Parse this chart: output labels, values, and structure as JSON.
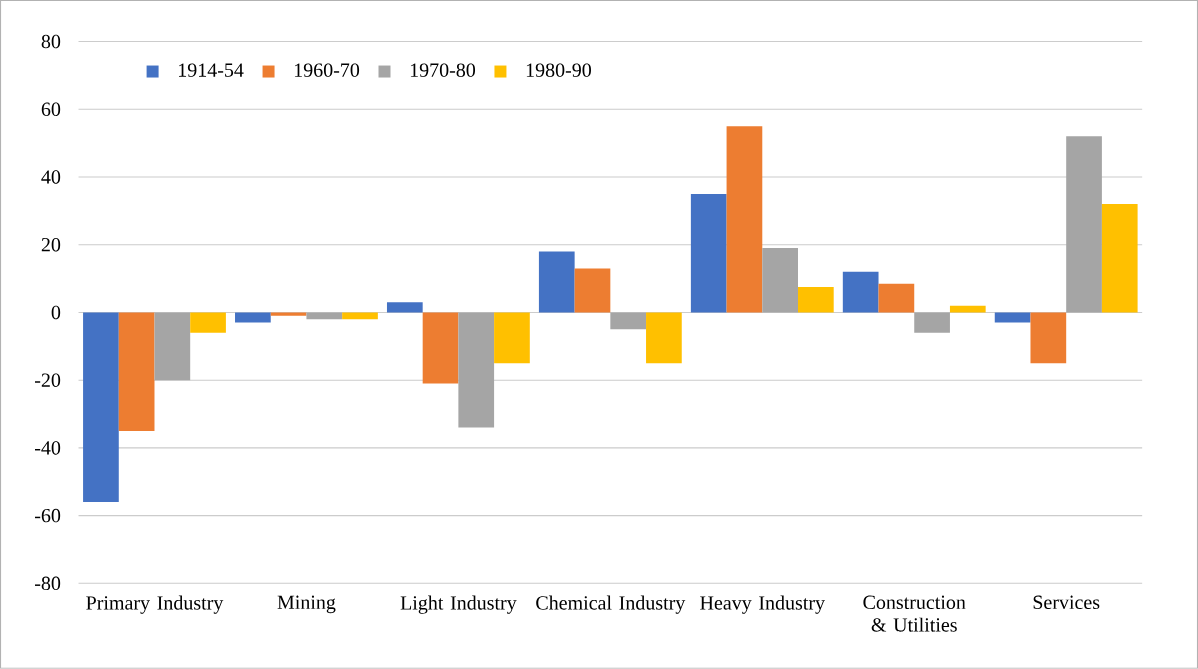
{
  "chart_data": {
    "type": "bar",
    "categories": [
      "Primary Industry",
      "Mining",
      "Light Industry",
      "Chemical Industry",
      "Heavy Industry",
      "Construction & Utilities",
      "Services"
    ],
    "series": [
      {
        "name": "1914-54",
        "color": "#4472c4",
        "values": [
          -56,
          -3,
          3,
          18,
          35,
          12,
          -3
        ]
      },
      {
        "name": "1960-70",
        "color": "#ed7d31",
        "values": [
          -35,
          -1,
          -21,
          13,
          55,
          8.5,
          -15
        ]
      },
      {
        "name": "1970-80",
        "color": "#a5a5a5",
        "values": [
          -20,
          -2,
          -34,
          -5,
          19,
          -6,
          52
        ]
      },
      {
        "name": "1980-90",
        "color": "#ffc000",
        "values": [
          -6,
          -2,
          -15,
          -15,
          7.5,
          2,
          32
        ]
      }
    ],
    "ylim": [
      -80,
      80
    ],
    "yticks": [
      -80,
      -60,
      -40,
      -20,
      0,
      20,
      40,
      60,
      80
    ],
    "grid": "y",
    "legend": "top left"
  }
}
